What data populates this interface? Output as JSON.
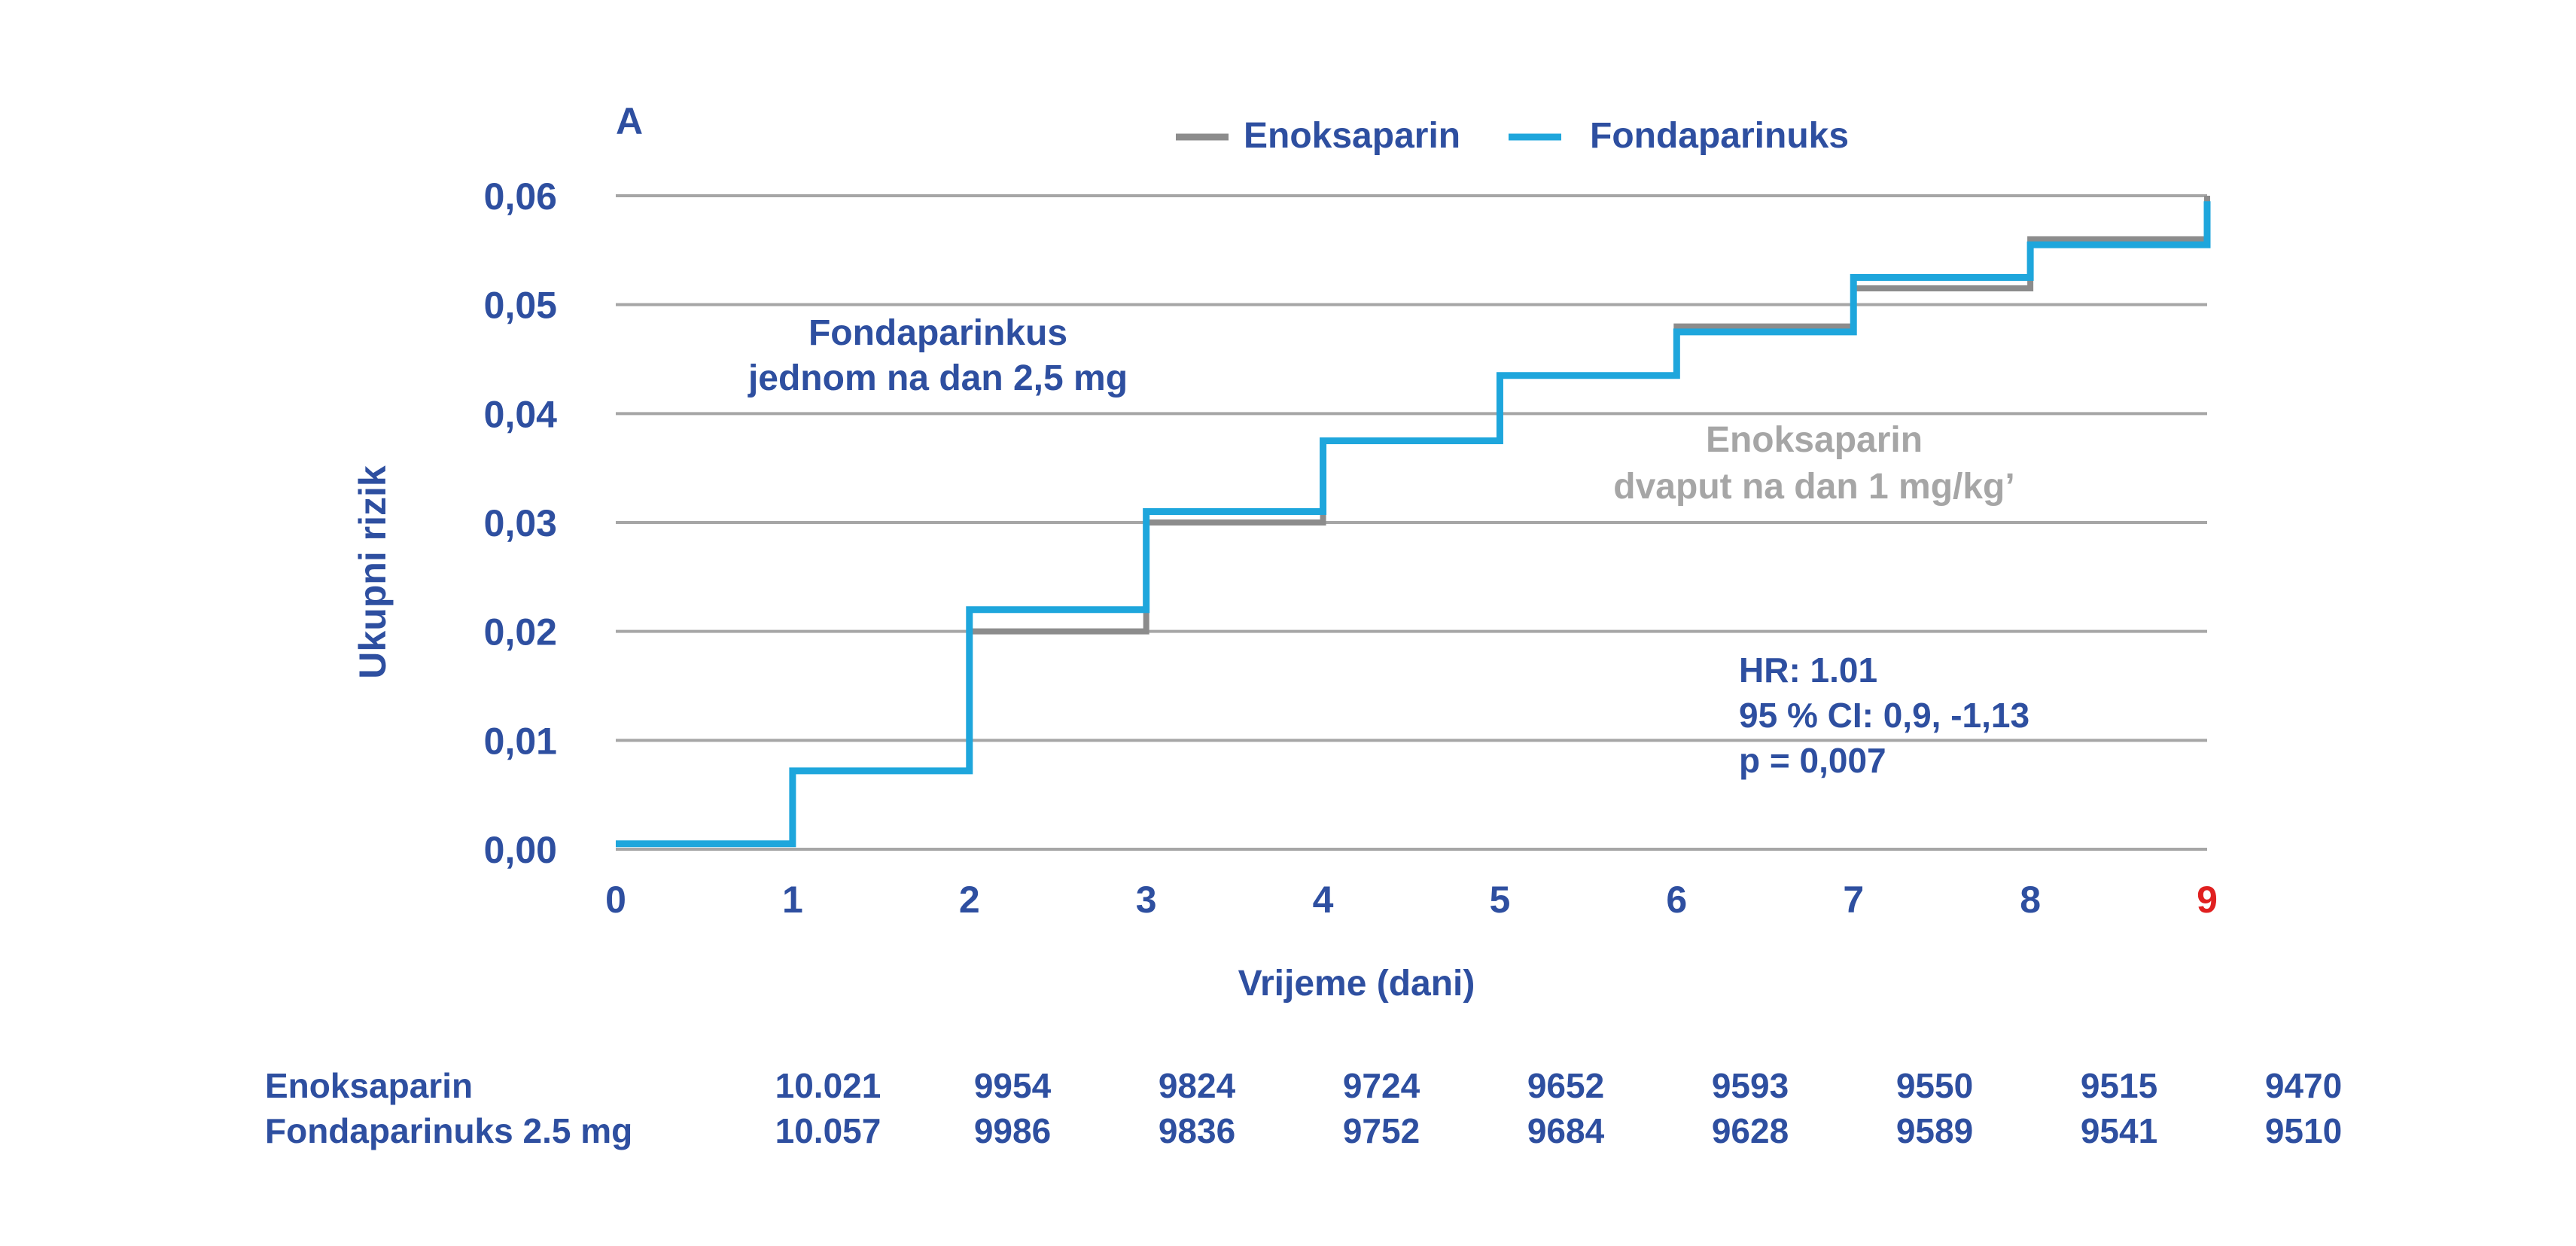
{
  "chart_data": {
    "type": "line",
    "step": true,
    "panel_label": "A",
    "xlabel": "Vrijeme (dani)",
    "ylabel": "Ukupni rizik",
    "xlim": [
      0,
      9
    ],
    "ylim": [
      0,
      0.06
    ],
    "x_ticks": [
      {
        "value": 0,
        "label": "0"
      },
      {
        "value": 1,
        "label": "1"
      },
      {
        "value": 2,
        "label": "2"
      },
      {
        "value": 3,
        "label": "3"
      },
      {
        "value": 4,
        "label": "4"
      },
      {
        "value": 5,
        "label": "5"
      },
      {
        "value": 6,
        "label": "6"
      },
      {
        "value": 7,
        "label": "7"
      },
      {
        "value": 8,
        "label": "8"
      },
      {
        "value": 9,
        "label": "9",
        "highlight": true
      }
    ],
    "y_ticks": [
      {
        "value": 0,
        "label": "0,00"
      },
      {
        "value": 0.01,
        "label": "0,01"
      },
      {
        "value": 0.02,
        "label": "0,02"
      },
      {
        "value": 0.03,
        "label": "0,03"
      },
      {
        "value": 0.04,
        "label": "0,04"
      },
      {
        "value": 0.05,
        "label": "0,05"
      },
      {
        "value": 0.06,
        "label": "0,06"
      }
    ],
    "grid": true,
    "legend_position": "top-center",
    "series": [
      {
        "name": "Enoksaparin",
        "color": "#8c8c8c",
        "x": [
          0,
          1,
          2,
          3,
          4,
          5,
          6,
          7,
          8,
          9
        ],
        "y": [
          0.0005,
          0.0072,
          0.02,
          0.03,
          0.0375,
          0.0435,
          0.048,
          0.0515,
          0.056,
          0.06
        ]
      },
      {
        "name": "Fondaparinuks",
        "color": "#1ea6dc",
        "x": [
          0,
          1,
          2,
          3,
          4,
          5,
          6,
          7,
          8,
          9
        ],
        "y": [
          0.0005,
          0.0072,
          0.022,
          0.031,
          0.0375,
          0.0435,
          0.0475,
          0.0525,
          0.0555,
          0.0595
        ]
      }
    ],
    "annotations": [
      {
        "id": "fonda-label",
        "lines": [
          "Fondaparinkus",
          "jednom na dan 2,5 mg"
        ],
        "color": "#2e4fa0"
      },
      {
        "id": "enoxa-label",
        "lines": [
          "Enoksaparin",
          "dvaput na dan 1 mg/kg’"
        ],
        "color": "#a6a6a6"
      },
      {
        "id": "stats",
        "lines": [
          "HR: 1.01",
          "95 % CI: 0,9, -1,13",
          "p = 0,007"
        ],
        "color": "#2e4fa0"
      }
    ],
    "risk_table": {
      "rows": [
        {
          "label": "Enoksaparin",
          "values": [
            "10.021",
            "9954",
            "9824",
            "9724",
            "9652",
            "9593",
            "9550",
            "9515",
            "9470"
          ]
        },
        {
          "label": "Fondaparinuks 2.5 mg",
          "values": [
            "10.057",
            "9986",
            "9836",
            "9752",
            "9684",
            "9628",
            "9589",
            "9541",
            "9510"
          ]
        }
      ]
    },
    "colors": {
      "text": "#2e4fa0",
      "grid": "#a6a6a6",
      "highlight": "#e02020"
    }
  }
}
